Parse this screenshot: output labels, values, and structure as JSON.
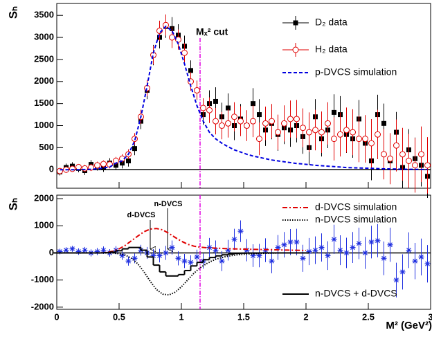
{
  "chart_data": [
    {
      "type": "line",
      "ylabel": "Sₕ",
      "xlim": [
        0,
        3
      ],
      "xticks": [
        0,
        0.5,
        1,
        1.5,
        2,
        2.5,
        3
      ],
      "ylim": [
        -420,
        3770
      ],
      "yticks": [
        0,
        500,
        1000,
        1500,
        2000,
        2500,
        3000,
        3500
      ],
      "cut": {
        "label": "Mₓ² cut",
        "x": 1.15,
        "color": "#e000e0"
      },
      "x": [
        0.025,
        0.075,
        0.125,
        0.175,
        0.225,
        0.275,
        0.325,
        0.375,
        0.425,
        0.475,
        0.525,
        0.575,
        0.625,
        0.675,
        0.725,
        0.775,
        0.825,
        0.875,
        0.925,
        0.975,
        1.025,
        1.075,
        1.125,
        1.175,
        1.225,
        1.275,
        1.325,
        1.375,
        1.425,
        1.475,
        1.525,
        1.575,
        1.625,
        1.675,
        1.725,
        1.775,
        1.825,
        1.875,
        1.925,
        1.975,
        2.025,
        2.075,
        2.125,
        2.175,
        2.225,
        2.275,
        2.325,
        2.375,
        2.425,
        2.475,
        2.525,
        2.575,
        2.625,
        2.675,
        2.725,
        2.775,
        2.825,
        2.875,
        2.925,
        2.975
      ],
      "series": [
        {
          "name": "D₂ data",
          "color": "#000000",
          "marker": "square",
          "values": [
            -50,
            50,
            80,
            30,
            -20,
            120,
            80,
            50,
            150,
            100,
            150,
            200,
            480,
            1100,
            1800,
            2600,
            3000,
            3250,
            3200,
            3050,
            2800,
            2250,
            1800,
            1250,
            1500,
            1550,
            1200,
            1400,
            1000,
            1150,
            1000,
            1500,
            1250,
            900,
            1050,
            800,
            950,
            900,
            1000,
            750,
            500,
            1200,
            700,
            900,
            1300,
            1250,
            800,
            700,
            1150,
            600,
            200,
            1250,
            1050,
            200,
            850,
            50,
            450,
            250,
            100,
            -150
          ],
          "errors": [
            80,
            90,
            90,
            90,
            100,
            100,
            100,
            100,
            110,
            110,
            120,
            130,
            150,
            180,
            200,
            230,
            250,
            260,
            260,
            250,
            240,
            230,
            220,
            230,
            300,
            320,
            320,
            330,
            330,
            340,
            340,
            350,
            350,
            360,
            360,
            370,
            370,
            380,
            380,
            390,
            390,
            400,
            400,
            410,
            410,
            420,
            420,
            430,
            430,
            440,
            440,
            450,
            450,
            460,
            460,
            470,
            470,
            480,
            480,
            490
          ]
        },
        {
          "name": "H₂ data",
          "color": "#e00000",
          "marker": "circle",
          "values": [
            -30,
            0,
            20,
            60,
            30,
            50,
            100,
            130,
            120,
            200,
            250,
            350,
            700,
            1200,
            1850,
            2600,
            3150,
            3280,
            3000,
            2950,
            2650,
            2000,
            1800,
            1400,
            1350,
            1100,
            1000,
            1050,
            1200,
            1100,
            1000,
            1100,
            700,
            1050,
            1100,
            850,
            1050,
            1150,
            1150,
            950,
            850,
            900,
            850,
            1050,
            700,
            800,
            900,
            850,
            700,
            700,
            600,
            800,
            350,
            250,
            550,
            350,
            200,
            100,
            350,
            100
          ],
          "errors": [
            60,
            70,
            70,
            70,
            80,
            80,
            80,
            80,
            90,
            90,
            100,
            110,
            130,
            160,
            180,
            210,
            230,
            240,
            240,
            230,
            220,
            210,
            210,
            220,
            290,
            300,
            310,
            320,
            330,
            340,
            350,
            360,
            370,
            380,
            390,
            400,
            410,
            420,
            430,
            440,
            450,
            460,
            470,
            480,
            490,
            500,
            510,
            520,
            530,
            540,
            550,
            560,
            570,
            580,
            590,
            600,
            610,
            620,
            630,
            640
          ]
        },
        {
          "name": "p-DVCS simulation",
          "color": "#0000e0",
          "dash": "dashed",
          "values": [
            0,
            0,
            0,
            0,
            5,
            10,
            20,
            40,
            60,
            150,
            200,
            350,
            650,
            1200,
            1900,
            2650,
            3100,
            3250,
            3150,
            2850,
            2400,
            1900,
            1450,
            1100,
            850,
            700,
            600,
            520,
            450,
            400,
            350,
            310,
            280,
            250,
            220,
            200,
            180,
            160,
            140,
            130,
            115,
            100,
            90,
            80,
            70,
            60,
            50,
            45,
            40,
            35,
            30,
            25,
            20,
            18,
            15,
            12,
            10,
            8,
            6,
            5
          ]
        }
      ]
    },
    {
      "type": "line",
      "ylabel": "Sₕ",
      "xlabel": "M² (GeV²)",
      "xlim": [
        0,
        3
      ],
      "xticks": [
        0,
        0.5,
        1,
        1.5,
        2,
        2.5,
        3
      ],
      "ylim": [
        -2080,
        2130
      ],
      "yticks": [
        -2000,
        -1000,
        0,
        1000,
        2000
      ],
      "annotations": [
        "d-DVCS",
        "n-DVCS"
      ],
      "x": [
        0.025,
        0.075,
        0.125,
        0.175,
        0.225,
        0.275,
        0.325,
        0.375,
        0.425,
        0.475,
        0.525,
        0.575,
        0.625,
        0.675,
        0.725,
        0.775,
        0.825,
        0.875,
        0.925,
        0.975,
        1.025,
        1.075,
        1.125,
        1.175,
        1.225,
        1.275,
        1.325,
        1.375,
        1.425,
        1.475,
        1.525,
        1.575,
        1.625,
        1.675,
        1.725,
        1.775,
        1.825,
        1.875,
        1.925,
        1.975,
        2.025,
        2.075,
        2.125,
        2.175,
        2.225,
        2.275,
        2.325,
        2.375,
        2.425,
        2.475,
        2.525,
        2.575,
        2.625,
        2.675,
        2.725,
        2.775,
        2.825,
        2.875,
        2.925,
        2.975
      ],
      "series": [
        {
          "color": "#2030e0",
          "marker": "star",
          "values": [
            50,
            100,
            150,
            50,
            100,
            0,
            50,
            100,
            0,
            100,
            -100,
            -300,
            -200,
            100,
            0,
            -100,
            -100,
            0,
            200,
            -200,
            -300,
            -350,
            -150,
            -300,
            200,
            100,
            -300,
            100,
            500,
            800,
            100,
            -100,
            -100,
            100,
            -300,
            200,
            300,
            400,
            400,
            -200,
            50,
            100,
            200,
            -100,
            500,
            100,
            0,
            200,
            350,
            0,
            400,
            450,
            -200,
            300,
            -1000,
            -700,
            100,
            -300,
            -150,
            -400
          ],
          "errors": [
            100,
            110,
            110,
            120,
            120,
            130,
            130,
            140,
            140,
            150,
            160,
            170,
            180,
            200,
            220,
            240,
            250,
            260,
            260,
            260,
            260,
            260,
            270,
            280,
            350,
            360,
            370,
            380,
            390,
            400,
            410,
            420,
            430,
            440,
            450,
            460,
            470,
            480,
            490,
            500,
            500,
            510,
            520,
            530,
            540,
            550,
            560,
            570,
            580,
            590,
            600,
            610,
            620,
            630,
            640,
            650,
            660,
            670,
            680,
            690
          ]
        },
        {
          "name": "d-DVCS simulation",
          "color": "#e00000",
          "dash": "dashdot",
          "x": [
            0,
            0.05,
            0.1,
            0.15,
            0.2,
            0.25,
            0.3,
            0.35,
            0.4,
            0.45,
            0.5,
            0.55,
            0.6,
            0.65,
            0.7,
            0.75,
            0.8,
            0.85,
            0.9,
            0.95,
            1,
            1.05,
            1.1,
            1.15,
            1.2,
            1.25,
            1.3,
            1.35,
            1.4,
            1.45,
            1.5,
            1.55,
            1.6,
            1.65,
            1.7,
            1.75,
            1.8,
            1.85,
            1.9,
            1.95,
            2
          ],
          "values": [
            0,
            0,
            0,
            0,
            0,
            0,
            0,
            0,
            20,
            60,
            150,
            280,
            450,
            620,
            780,
            880,
            900,
            850,
            720,
            570,
            430,
            320,
            250,
            210,
            190,
            180,
            170,
            160,
            150,
            145,
            140,
            135,
            130,
            125,
            120,
            115,
            110,
            105,
            100,
            95,
            90
          ]
        },
        {
          "name": "n-DVCS simulation",
          "color": "#000000",
          "dash": "dotted",
          "x": [
            0,
            0.05,
            0.1,
            0.15,
            0.2,
            0.25,
            0.3,
            0.35,
            0.4,
            0.45,
            0.5,
            0.55,
            0.6,
            0.65,
            0.7,
            0.75,
            0.8,
            0.85,
            0.9,
            0.95,
            1,
            1.05,
            1.1,
            1.15,
            1.2,
            1.25,
            1.3,
            1.35,
            1.4,
            1.45,
            1.5,
            1.55,
            1.6,
            1.65,
            1.7,
            1.75,
            1.8,
            1.85,
            1.9,
            1.95,
            2
          ],
          "values": [
            0,
            0,
            0,
            0,
            0,
            0,
            0,
            0,
            0,
            0,
            -30,
            -80,
            -200,
            -400,
            -700,
            -1050,
            -1350,
            -1520,
            -1550,
            -1450,
            -1250,
            -1000,
            -750,
            -550,
            -400,
            -280,
            -200,
            -140,
            -100,
            -70,
            -50,
            -35,
            -25,
            -15,
            -10,
            -5,
            0,
            0,
            0,
            0,
            0
          ]
        },
        {
          "name": "n-DVCS + d-DVCS",
          "color": "#000000",
          "dash": "solid",
          "step": true,
          "x": [
            0,
            0.05,
            0.1,
            0.15,
            0.2,
            0.25,
            0.3,
            0.35,
            0.4,
            0.45,
            0.5,
            0.55,
            0.6,
            0.65,
            0.7,
            0.75,
            0.8,
            0.85,
            0.9,
            0.95,
            1,
            1.05,
            1.1,
            1.15,
            1.2,
            1.25,
            1.3,
            1.35,
            1.4,
            1.45,
            1.5,
            1.55,
            1.6,
            1.65,
            1.7,
            1.75,
            1.8,
            1.85,
            1.9,
            1.95,
            2
          ],
          "values": [
            0,
            0,
            0,
            0,
            0,
            0,
            0,
            0,
            10,
            30,
            80,
            150,
            200,
            200,
            100,
            -150,
            -450,
            -700,
            -850,
            -850,
            -800,
            -650,
            -480,
            -350,
            -250,
            -170,
            -110,
            -70,
            -40,
            -20,
            -10,
            -5,
            -5,
            0,
            0,
            0,
            0,
            0,
            0,
            0,
            0
          ]
        }
      ]
    }
  ]
}
